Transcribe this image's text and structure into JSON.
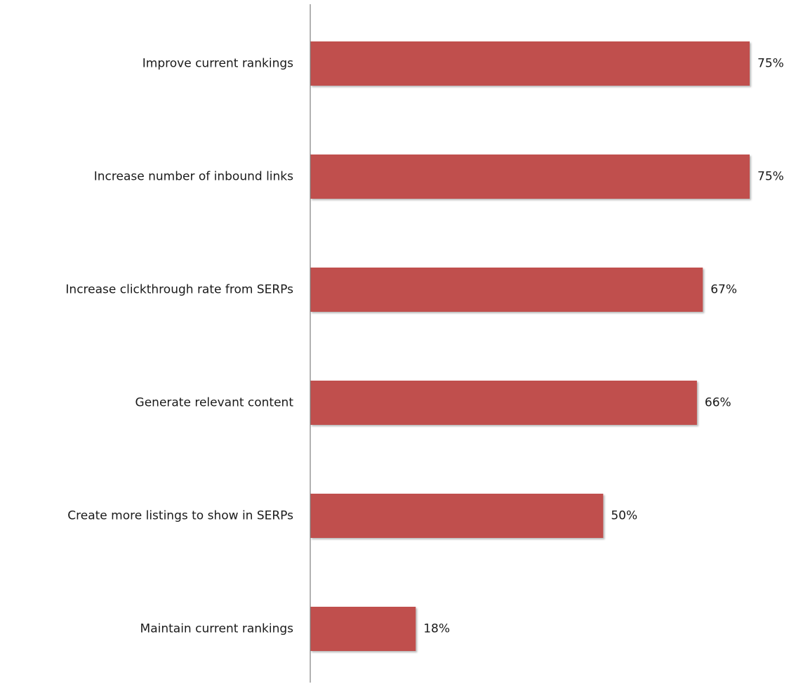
{
  "chart_data": {
    "type": "bar",
    "orientation": "horizontal",
    "title": "",
    "xlabel": "",
    "ylabel": "",
    "categories": [
      "Improve current rankings",
      "Increase number of inbound links",
      "Increase clickthrough rate from SERPs",
      "Generate relevant content",
      "Create more listings to show in SERPs",
      "Maintain current rankings"
    ],
    "values": [
      75,
      75,
      67,
      66,
      50,
      18
    ],
    "value_labels": [
      "75%",
      "75%",
      "67%",
      "66%",
      "50%",
      "18%"
    ],
    "xlim": [
      0,
      75
    ],
    "grid": false,
    "legend": "none",
    "bar_color": "#C0504D",
    "axis_color": "#7f7f7f"
  }
}
